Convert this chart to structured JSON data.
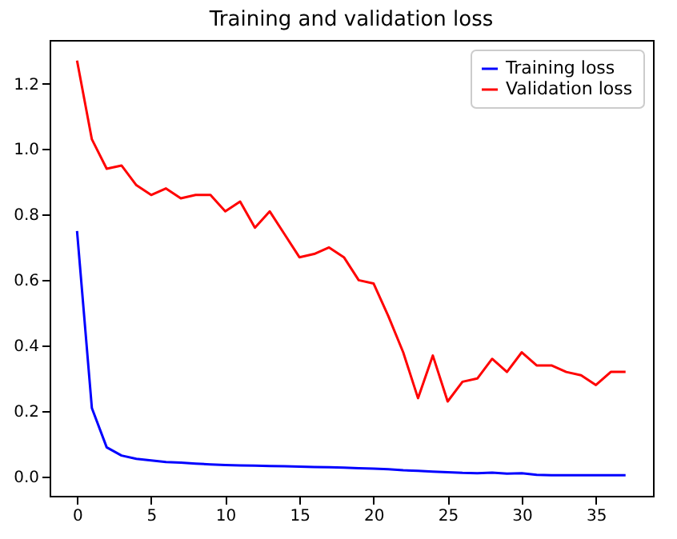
{
  "chart_data": {
    "type": "line",
    "title": "Training and validation loss",
    "x": [
      0,
      1,
      2,
      3,
      4,
      5,
      6,
      7,
      8,
      9,
      10,
      11,
      12,
      13,
      14,
      15,
      16,
      17,
      18,
      19,
      20,
      21,
      22,
      23,
      24,
      25,
      26,
      27,
      28,
      29,
      30,
      31,
      32,
      33,
      34,
      35,
      36,
      37
    ],
    "series": [
      {
        "name": "Training loss",
        "color": "#0000ff",
        "values": [
          0.75,
          0.21,
          0.09,
          0.065,
          0.055,
          0.05,
          0.045,
          0.043,
          0.04,
          0.038,
          0.036,
          0.035,
          0.034,
          0.033,
          0.032,
          0.031,
          0.03,
          0.029,
          0.028,
          0.026,
          0.025,
          0.023,
          0.02,
          0.018,
          0.016,
          0.014,
          0.012,
          0.011,
          0.013,
          0.01,
          0.011,
          0.006,
          0.005,
          0.005,
          0.005,
          0.005,
          0.005,
          0.005
        ]
      },
      {
        "name": "Validation loss",
        "color": "#ff0000",
        "values": [
          1.27,
          1.03,
          0.94,
          0.95,
          0.89,
          0.86,
          0.88,
          0.85,
          0.86,
          0.86,
          0.81,
          0.84,
          0.76,
          0.81,
          0.74,
          0.67,
          0.68,
          0.7,
          0.67,
          0.6,
          0.59,
          0.49,
          0.38,
          0.24,
          0.37,
          0.23,
          0.29,
          0.3,
          0.36,
          0.32,
          0.38,
          0.34,
          0.34,
          0.32,
          0.31,
          0.28,
          0.32,
          0.32
        ]
      }
    ],
    "xlim": [
      -1.85,
      38.85
    ],
    "xticks": [
      0,
      5,
      10,
      15,
      20,
      25,
      30,
      35
    ],
    "ylim": [
      -0.058,
      1.333
    ],
    "yticks": [
      {
        "value": 0,
        "label": "0.0"
      },
      0.2,
      0.4,
      0.6,
      0.8,
      {
        "value": 1,
        "label": "1.0"
      },
      1.2
    ],
    "legend": "top right",
    "grid": false,
    "line_style": "solid"
  }
}
